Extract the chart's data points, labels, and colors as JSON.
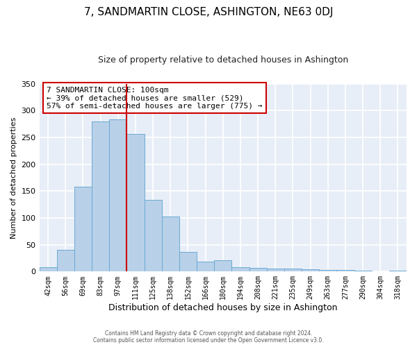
{
  "title": "7, SANDMARTIN CLOSE, ASHINGTON, NE63 0DJ",
  "subtitle": "Size of property relative to detached houses in Ashington",
  "xlabel": "Distribution of detached houses by size in Ashington",
  "ylabel": "Number of detached properties",
  "bin_labels": [
    "42sqm",
    "56sqm",
    "69sqm",
    "83sqm",
    "97sqm",
    "111sqm",
    "125sqm",
    "138sqm",
    "152sqm",
    "166sqm",
    "180sqm",
    "194sqm",
    "208sqm",
    "221sqm",
    "235sqm",
    "249sqm",
    "263sqm",
    "277sqm",
    "290sqm",
    "304sqm",
    "318sqm"
  ],
  "bar_heights": [
    8,
    41,
    158,
    280,
    283,
    257,
    133,
    103,
    36,
    18,
    21,
    8,
    7,
    5,
    5,
    4,
    3,
    3,
    2,
    1,
    2
  ],
  "bar_color": "#b8d0e8",
  "bar_edge_color": "#6aaad4",
  "vline_x": 4.5,
  "vline_color": "#cc0000",
  "annotation_title": "7 SANDMARTIN CLOSE: 100sqm",
  "annotation_line1": "← 39% of detached houses are smaller (529)",
  "annotation_line2": "57% of semi-detached houses are larger (775) →",
  "annotation_box_facecolor": "#ffffff",
  "annotation_box_edgecolor": "#cc0000",
  "ylim": [
    0,
    350
  ],
  "yticks": [
    0,
    50,
    100,
    150,
    200,
    250,
    300,
    350
  ],
  "footer1": "Contains HM Land Registry data © Crown copyright and database right 2024.",
  "footer2": "Contains public sector information licensed under the Open Government Licence v3.0.",
  "bg_color": "#ffffff",
  "plot_bg_color": "#e8eef7",
  "grid_color": "#ffffff",
  "title_fontsize": 11,
  "subtitle_fontsize": 9
}
